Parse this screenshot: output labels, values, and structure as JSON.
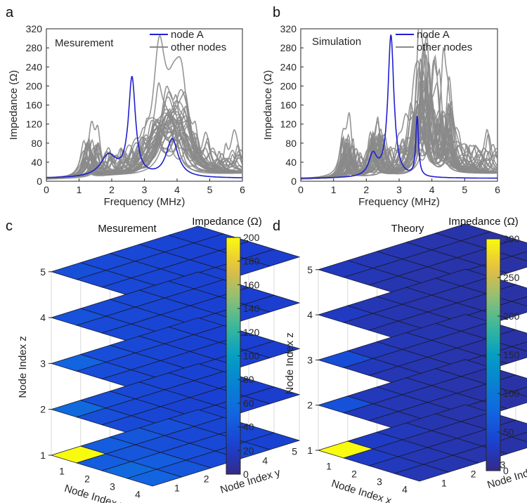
{
  "panels": {
    "a": {
      "letter": "a"
    },
    "b": {
      "letter": "b"
    },
    "c": {
      "letter": "c"
    },
    "d": {
      "letter": "d"
    }
  },
  "chart_data": [
    {
      "type": "line",
      "panel": "a",
      "title": "Mesurement",
      "xlabel": "Frequency (MHz)",
      "ylabel": "Impedance (Ω)",
      "xlim": [
        0,
        6
      ],
      "ylim": [
        0,
        320
      ],
      "xticks": [
        0,
        1,
        2,
        3,
        4,
        5,
        6
      ],
      "yticks": [
        0,
        40,
        80,
        120,
        160,
        200,
        240,
        280,
        320
      ],
      "legend": [
        "node A",
        "other nodes"
      ],
      "legend_position": "top-right",
      "colors": {
        "node_a": "#1f1fd0",
        "others": "#8a8a8a"
      },
      "series": [
        {
          "name": "node A",
          "peaks": [
            [
              2.62,
              205,
              0.13
            ],
            [
              3.85,
              80,
              0.22
            ],
            [
              1.9,
              45,
              0.3
            ]
          ]
        },
        {
          "name": "other nodes",
          "peaks": [
            [
              1.38,
              100,
              0.12
            ],
            [
              3.48,
              125,
              0.25
            ],
            [
              4.15,
              102,
              0.2
            ],
            [
              3.9,
              90,
              0.25
            ]
          ]
        }
      ]
    },
    {
      "type": "line",
      "panel": "b",
      "title": "Simulation",
      "xlabel": "Frequency (MHz)",
      "ylabel": "Impedance (Ω)",
      "xlim": [
        0,
        6
      ],
      "ylim": [
        0,
        320
      ],
      "xticks": [
        0,
        1,
        2,
        3,
        4,
        5,
        6
      ],
      "yticks": [
        0,
        40,
        80,
        120,
        160,
        200,
        240,
        280,
        320
      ],
      "legend": [
        "node A",
        "other nodes"
      ],
      "legend_position": "top-right",
      "colors": {
        "node_a": "#1f1fd0",
        "others": "#8a8a8a"
      },
      "series": [
        {
          "name": "node A",
          "peaks": [
            [
              2.75,
              298,
              0.11
            ],
            [
              3.55,
              125,
              0.05
            ],
            [
              2.2,
              45,
              0.15
            ]
          ]
        },
        {
          "name": "other nodes",
          "peaks": [
            [
              1.48,
              112,
              0.09
            ],
            [
              3.85,
              212,
              0.1
            ],
            [
              4.35,
              200,
              0.1
            ],
            [
              3.6,
              180,
              0.12
            ],
            [
              2.35,
              110,
              0.08
            ]
          ]
        }
      ]
    },
    {
      "type": "heatmap",
      "panel": "c",
      "title": "Mesurement",
      "colorbar_label": "Impedance (Ω)",
      "clim": [
        0,
        200
      ],
      "colorbar_ticks": [
        0,
        20,
        40,
        60,
        80,
        100,
        120,
        140,
        160,
        180,
        200
      ],
      "xlabel": "Node Index x",
      "ylabel": "Node Index y",
      "zlabel": "Node Index z",
      "x_ticks": [
        "1",
        "2",
        "3",
        "4"
      ],
      "y_ticks": [
        "1",
        "2",
        "3",
        "4",
        "5"
      ],
      "z_ticks": [
        "1",
        "2",
        "3",
        "4",
        "5"
      ],
      "layers": [
        [
          [
            200,
            45,
            40,
            35,
            30
          ],
          [
            45,
            40,
            35,
            30,
            28
          ],
          [
            55,
            45,
            35,
            30,
            28
          ],
          [
            50,
            40,
            32,
            30,
            26
          ]
        ],
        [
          [
            55,
            35,
            30,
            28,
            26
          ],
          [
            35,
            30,
            28,
            26,
            25
          ],
          [
            32,
            28,
            26,
            25,
            24
          ],
          [
            30,
            28,
            26,
            24,
            23
          ]
        ],
        [
          [
            50,
            34,
            30,
            28,
            26
          ],
          [
            34,
            30,
            28,
            26,
            25
          ],
          [
            30,
            28,
            26,
            25,
            24
          ],
          [
            28,
            27,
            26,
            24,
            23
          ]
        ],
        [
          [
            38,
            32,
            30,
            28,
            26
          ],
          [
            32,
            30,
            28,
            26,
            25
          ],
          [
            30,
            28,
            27,
            25,
            24
          ],
          [
            28,
            27,
            26,
            24,
            23
          ]
        ],
        [
          [
            36,
            32,
            30,
            28,
            26
          ],
          [
            32,
            30,
            28,
            26,
            25
          ],
          [
            30,
            28,
            27,
            25,
            24
          ],
          [
            28,
            27,
            26,
            24,
            23
          ]
        ]
      ]
    },
    {
      "type": "heatmap",
      "panel": "d",
      "title": "Theory",
      "colorbar_label": "Impedance (Ω)",
      "clim": [
        0,
        300
      ],
      "colorbar_ticks": [
        0,
        50,
        100,
        150,
        200,
        250,
        300
      ],
      "xlabel": "Node Index x",
      "ylabel": "Node Index y",
      "zlabel": "Node Index z",
      "x_ticks": [
        "1",
        "2",
        "3",
        "4"
      ],
      "y_ticks": [
        "1",
        "2",
        "3",
        "4",
        "5"
      ],
      "z_ticks": [
        "1",
        "2",
        "3",
        "4",
        "5"
      ],
      "layers": [
        [
          [
            300,
            30,
            25,
            20,
            18
          ],
          [
            30,
            25,
            20,
            18,
            16
          ],
          [
            25,
            22,
            20,
            18,
            16
          ],
          [
            22,
            20,
            18,
            16,
            15
          ]
        ],
        [
          [
            55,
            25,
            22,
            20,
            18
          ],
          [
            25,
            22,
            20,
            18,
            16
          ],
          [
            22,
            20,
            18,
            16,
            15
          ],
          [
            20,
            18,
            16,
            15,
            14
          ]
        ],
        [
          [
            50,
            25,
            22,
            20,
            18
          ],
          [
            25,
            22,
            20,
            18,
            16
          ],
          [
            22,
            20,
            18,
            16,
            15
          ],
          [
            20,
            18,
            16,
            15,
            14
          ]
        ],
        [
          [
            28,
            22,
            20,
            18,
            17
          ],
          [
            22,
            20,
            18,
            17,
            16
          ],
          [
            20,
            18,
            17,
            16,
            15
          ],
          [
            18,
            17,
            16,
            15,
            14
          ]
        ],
        [
          [
            26,
            22,
            20,
            18,
            17
          ],
          [
            22,
            20,
            18,
            17,
            16
          ],
          [
            20,
            18,
            17,
            16,
            15
          ],
          [
            18,
            17,
            16,
            15,
            14
          ]
        ]
      ]
    }
  ]
}
